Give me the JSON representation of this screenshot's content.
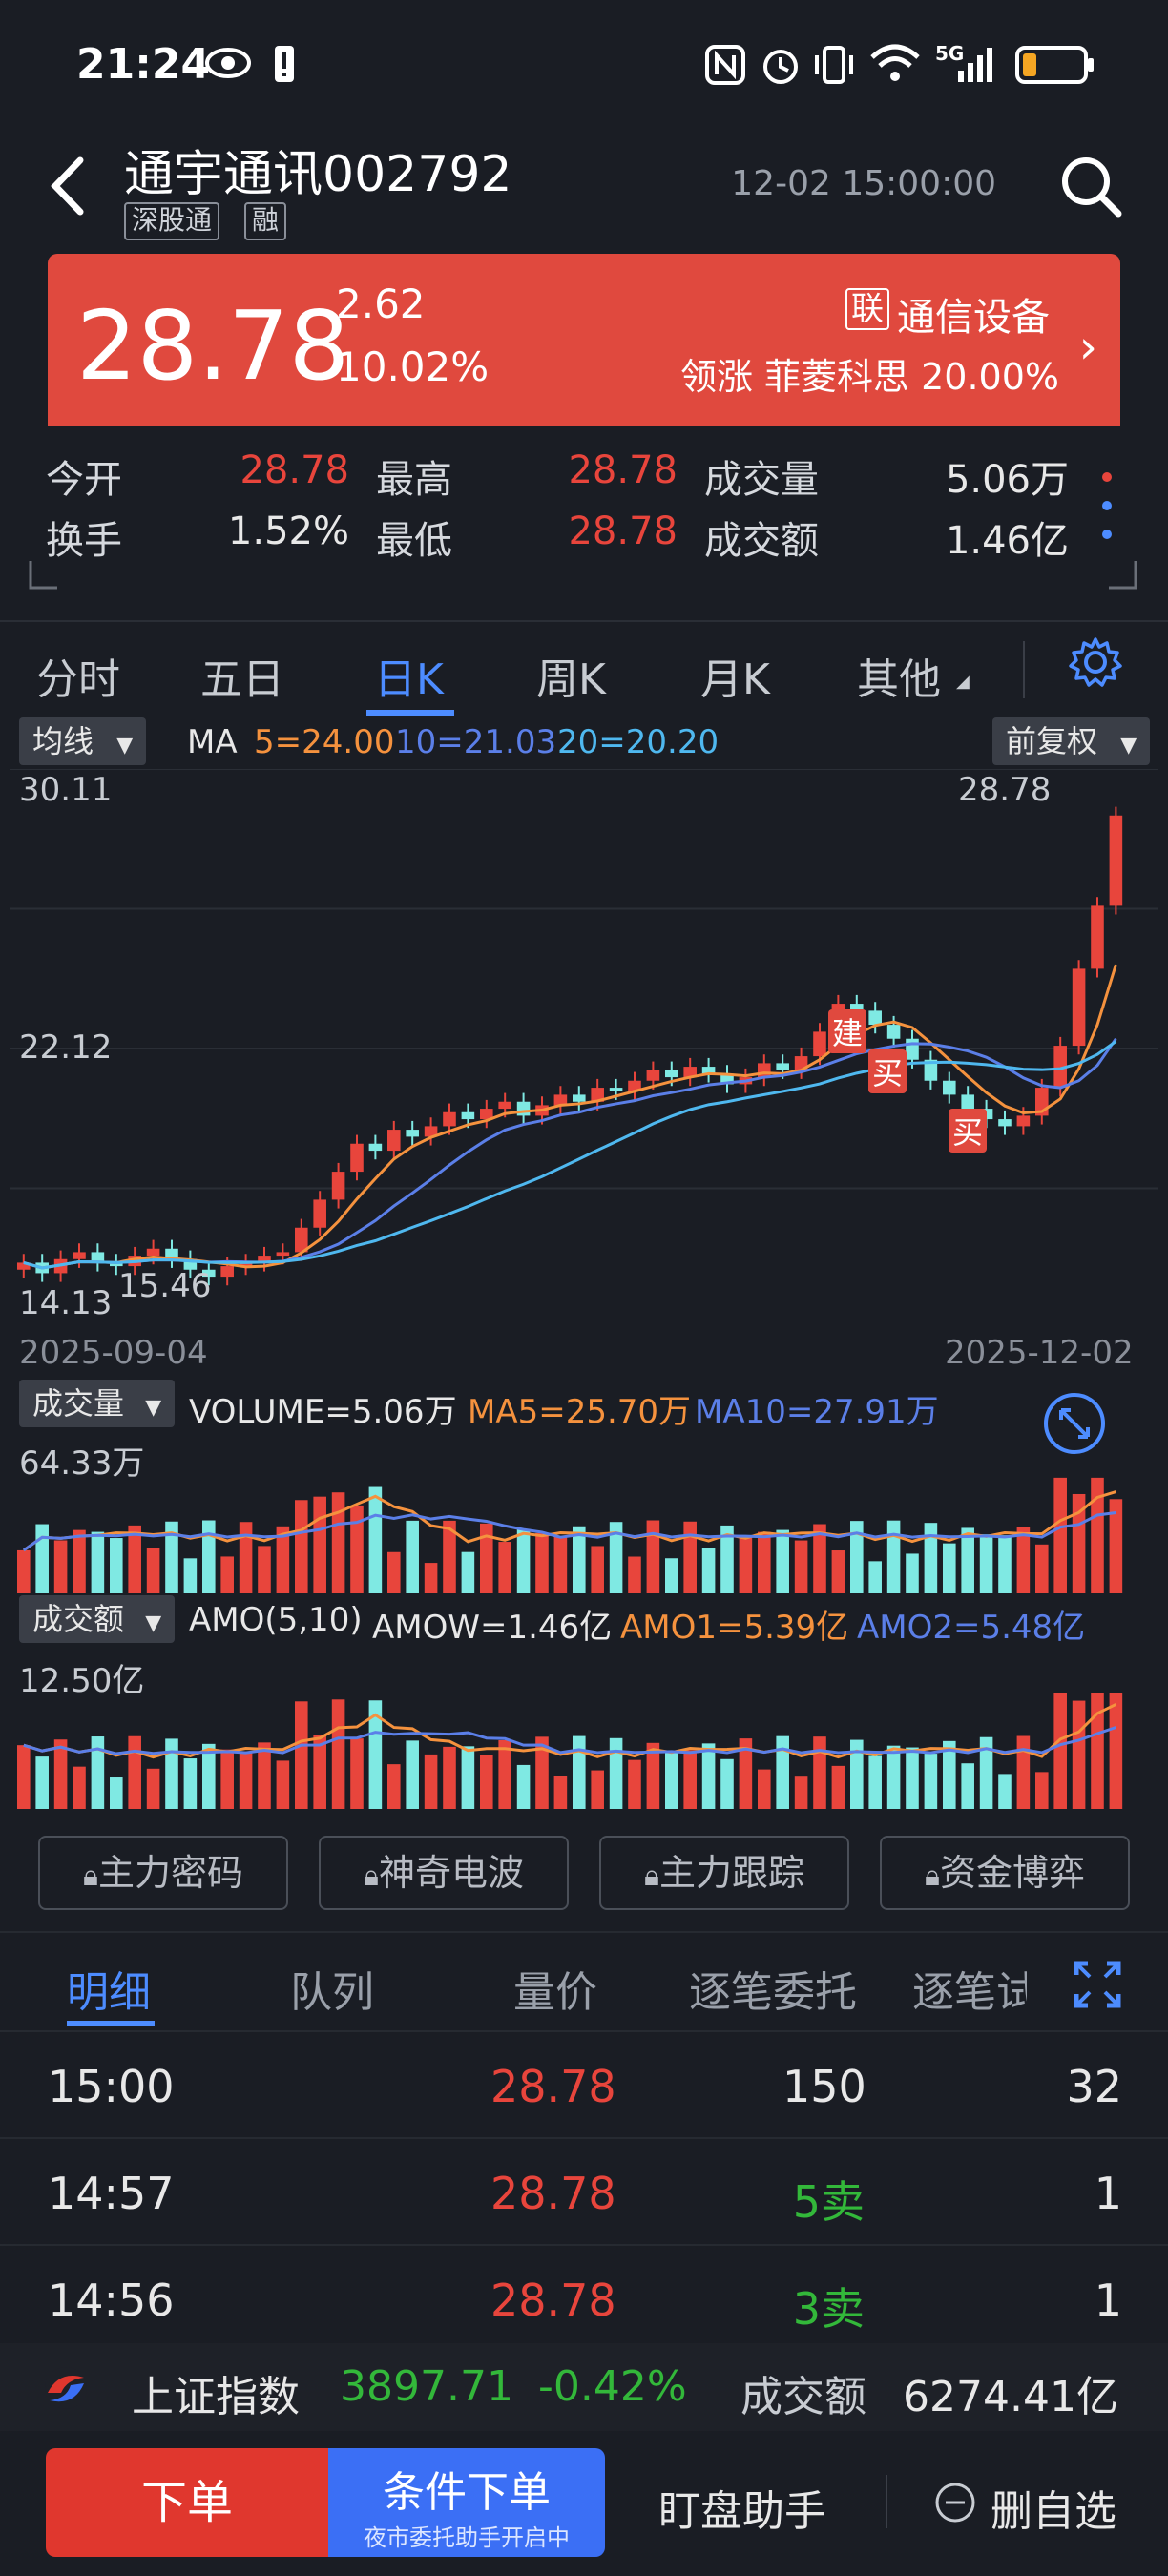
{
  "status_bar": {
    "time": "21:24",
    "network": "5G"
  },
  "header": {
    "title": "通宇通讯002792",
    "tags": [
      "深股通",
      "融"
    ],
    "datetime": "12-02 15:00:00"
  },
  "banner": {
    "price": "28.78",
    "change": "2.62",
    "change_pct": "10.02%",
    "sector_badge": "联",
    "sector": "通信设备",
    "leader": "领涨 菲菱科思 20.00%",
    "color": "#e0493e"
  },
  "quote": {
    "open_label": "今开",
    "open": "28.78",
    "high_label": "最高",
    "high": "28.78",
    "volume_label": "成交量",
    "volume": "5.06万",
    "turnover_label": "换手",
    "turnover": "1.52%",
    "low_label": "最低",
    "low": "28.78",
    "amount_label": "成交额",
    "amount": "1.46亿"
  },
  "tabs": [
    {
      "label": "分时"
    },
    {
      "label": "五日"
    },
    {
      "label": "日K"
    },
    {
      "label": "周K"
    },
    {
      "label": "月K"
    },
    {
      "label": "其他"
    }
  ],
  "active_tab": "日K",
  "kline": {
    "indicator_dropdown": "均线",
    "ma_title": "MA",
    "ma5": "5=24.00",
    "ma10": "10=21.03",
    "ma20": "20=20.20",
    "adjust_dropdown": "前复权",
    "y_top": "30.11",
    "y_mid": "22.12",
    "y_bottom": "14.13",
    "max_label": "28.78",
    "min_label": "15.46",
    "date_start": "2025-09-04",
    "date_end": "2025-12-02",
    "signals": [
      "建",
      "买",
      "买"
    ]
  },
  "volume_panel": {
    "dropdown": "成交量",
    "volume": "VOLUME=5.06万",
    "ma5": "MA5=25.70万",
    "ma10": "MA10=27.91万",
    "y_top": "64.33万"
  },
  "amount_panel": {
    "dropdown": "成交额",
    "title": "AMO(5,10)",
    "amow": "AMOW=1.46亿",
    "amo1": "AMO1=5.39亿",
    "amo2": "AMO2=5.48亿",
    "y_top": "12.50亿"
  },
  "chart_data": {
    "type": "candlestick",
    "ylim": [
      14.13,
      30.11
    ],
    "x_range": [
      "2025-09-04",
      "2025-12-02"
    ],
    "ma": {
      "MA5": 24.0,
      "MA10": 21.03,
      "MA20": 20.2
    },
    "last_close": 28.78,
    "period_low": 15.46,
    "volume_ylim_top": "64.33万",
    "amount_ylim_top": "12.50亿"
  },
  "locked_buttons": [
    "主力密码",
    "神奇电波",
    "主力跟踪",
    "资金博弈"
  ],
  "detail_tabs": [
    "明细",
    "队列",
    "量价",
    "逐笔委托",
    "逐笔试"
  ],
  "trades": [
    {
      "time": "15:00",
      "price": "28.78",
      "volume": "150",
      "count": "32"
    },
    {
      "time": "14:57",
      "price": "28.78",
      "volume": "5卖",
      "count": "1"
    },
    {
      "time": "14:56",
      "price": "28.78",
      "volume": "3卖",
      "count": "1"
    }
  ],
  "index_bar": {
    "name": "上证指数",
    "value": "3897.71",
    "change": "-0.42%",
    "amount_label": "成交额",
    "amount": "6274.41亿"
  },
  "bottom": {
    "order": "下单",
    "conditional": "条件下单",
    "conditional_sub": "夜市委托助手开启中",
    "watch": "盯盘助手",
    "remove": "删自选"
  }
}
